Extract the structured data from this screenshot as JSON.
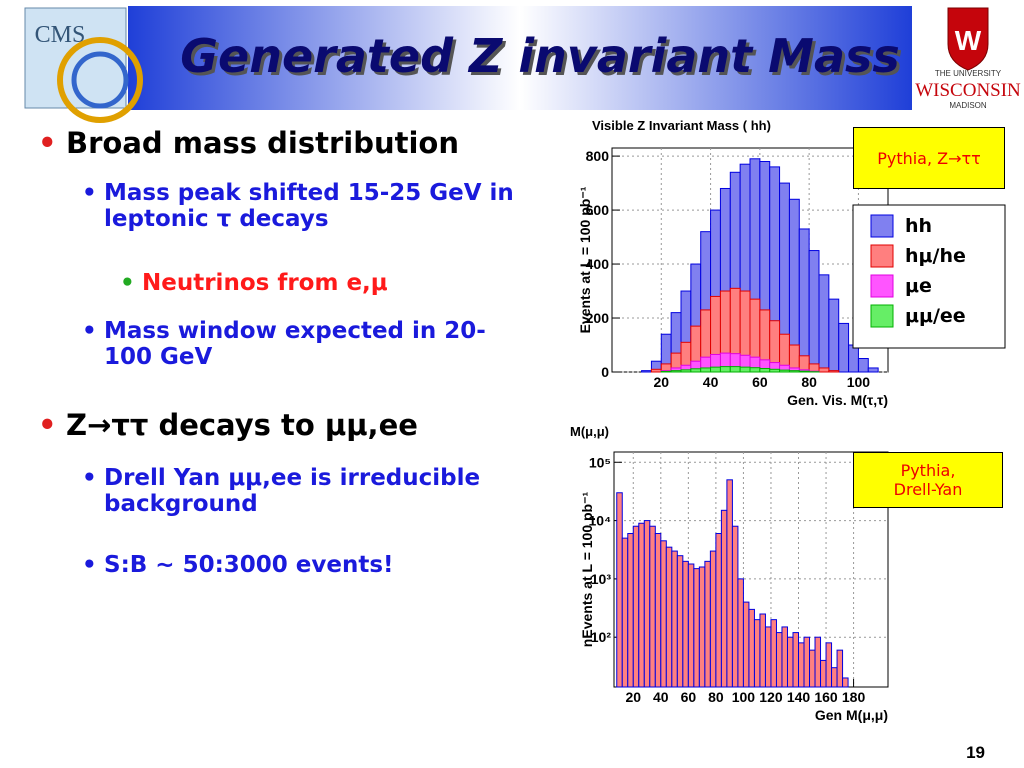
{
  "slide": {
    "title": "Generated Z invariant Mass",
    "logos": {
      "left": "CMS",
      "right_top": "THE UNIVERSITY",
      "right_name": "WISCONSIN",
      "right_bottom": "MADISON"
    },
    "bullets": [
      {
        "text": "Broad mass distribution",
        "children": [
          {
            "text": "Mass peak shifted 15-25 GeV in leptonic τ decays",
            "children": [
              {
                "text": "Neutrinos from e,μ"
              }
            ]
          },
          {
            "text": "Mass window expected in 20-100 GeV"
          }
        ]
      },
      {
        "text": "Z→ττ decays to μμ,ee",
        "children": [
          {
            "text": "Drell Yan μμ,ee  is irreducible background"
          },
          {
            "text": "S:B ~ 50:3000 events!"
          }
        ]
      }
    ],
    "page_number": "19"
  },
  "chart_data": [
    {
      "type": "histogram",
      "title": "Visible Z Invariant Mass ( hh)",
      "xlabel": "Gen. Vis. M(τ,τ)",
      "ylabel": "Events at L = 100 pb⁻¹",
      "annotation": "Pythia, Z→ττ",
      "grid": true,
      "log_y": false,
      "bins": [
        0,
        4,
        8,
        12,
        16,
        20,
        24,
        28,
        32,
        36,
        40,
        44,
        48,
        52,
        56,
        60,
        64,
        68,
        72,
        76,
        80,
        84,
        88,
        92,
        96,
        100,
        104,
        108,
        112
      ],
      "series": [
        {
          "name": "hh",
          "color": "#8080f0",
          "values": [
            0,
            0,
            0,
            5,
            40,
            140,
            220,
            300,
            400,
            520,
            600,
            680,
            740,
            770,
            790,
            780,
            760,
            700,
            640,
            530,
            450,
            360,
            270,
            180,
            100,
            50,
            15,
            0
          ]
        },
        {
          "name": "hμ/he",
          "color": "#ff7f7f",
          "values": [
            0,
            0,
            0,
            0,
            10,
            30,
            70,
            110,
            170,
            230,
            280,
            300,
            310,
            300,
            270,
            230,
            190,
            140,
            100,
            60,
            30,
            15,
            5,
            0,
            0,
            0,
            0,
            0
          ]
        },
        {
          "name": "μe",
          "color": "#ff55ff",
          "values": [
            0,
            0,
            0,
            0,
            0,
            5,
            15,
            25,
            40,
            55,
            65,
            70,
            68,
            62,
            55,
            45,
            35,
            25,
            15,
            8,
            3,
            0,
            0,
            0,
            0,
            0,
            0,
            0
          ]
        },
        {
          "name": "μμ/ee",
          "color": "#66ee66",
          "values": [
            0,
            0,
            0,
            0,
            0,
            2,
            5,
            8,
            12,
            15,
            18,
            20,
            20,
            18,
            16,
            13,
            10,
            7,
            5,
            3,
            1,
            0,
            0,
            0,
            0,
            0,
            0,
            0
          ]
        }
      ],
      "xlim": [
        0,
        112
      ],
      "xticks": [
        20,
        40,
        60,
        80,
        100
      ],
      "ylim": [
        0,
        830
      ],
      "yticks": [
        0,
        200,
        400,
        600,
        800
      ]
    },
    {
      "type": "histogram",
      "title": "M(μ,μ)",
      "xlabel": "Gen M(μ,μ)",
      "ylabel": "nEvents at L = 100 pb⁻¹",
      "annotation": "Pythia, Drell-Yan",
      "grid": true,
      "log_y": true,
      "bins": [
        8,
        12,
        16,
        20,
        24,
        28,
        32,
        36,
        40,
        44,
        48,
        52,
        56,
        60,
        64,
        68,
        72,
        76,
        80,
        84,
        88,
        92,
        96,
        100,
        104,
        108,
        112,
        116,
        120,
        124,
        128,
        132,
        136,
        140,
        144,
        148,
        152,
        156,
        160,
        164,
        168,
        172,
        176
      ],
      "series": [
        {
          "name": "Drell-Yan",
          "color": "#ff8080",
          "values": [
            30000,
            5000,
            6000,
            8000,
            9000,
            10000,
            8000,
            6000,
            4500,
            3500,
            3000,
            2500,
            2000,
            1800,
            1500,
            1600,
            2000,
            3000,
            6000,
            15000,
            50000,
            8000,
            1000,
            400,
            300,
            200,
            250,
            150,
            200,
            120,
            150,
            100,
            120,
            80,
            100,
            60,
            100,
            40,
            80,
            30,
            60,
            20
          ]
        }
      ],
      "xlim": [
        6,
        205
      ],
      "xticks": [
        20,
        40,
        60,
        80,
        100,
        120,
        140,
        160,
        180
      ],
      "ylim": [
        14,
        150000
      ],
      "yticks": [
        {
          "value": 100,
          "label": "10²"
        },
        {
          "value": 1000,
          "label": "10³"
        },
        {
          "value": 10000,
          "label": "10⁴"
        },
        {
          "value": 100000,
          "label": "10⁵"
        }
      ]
    }
  ]
}
